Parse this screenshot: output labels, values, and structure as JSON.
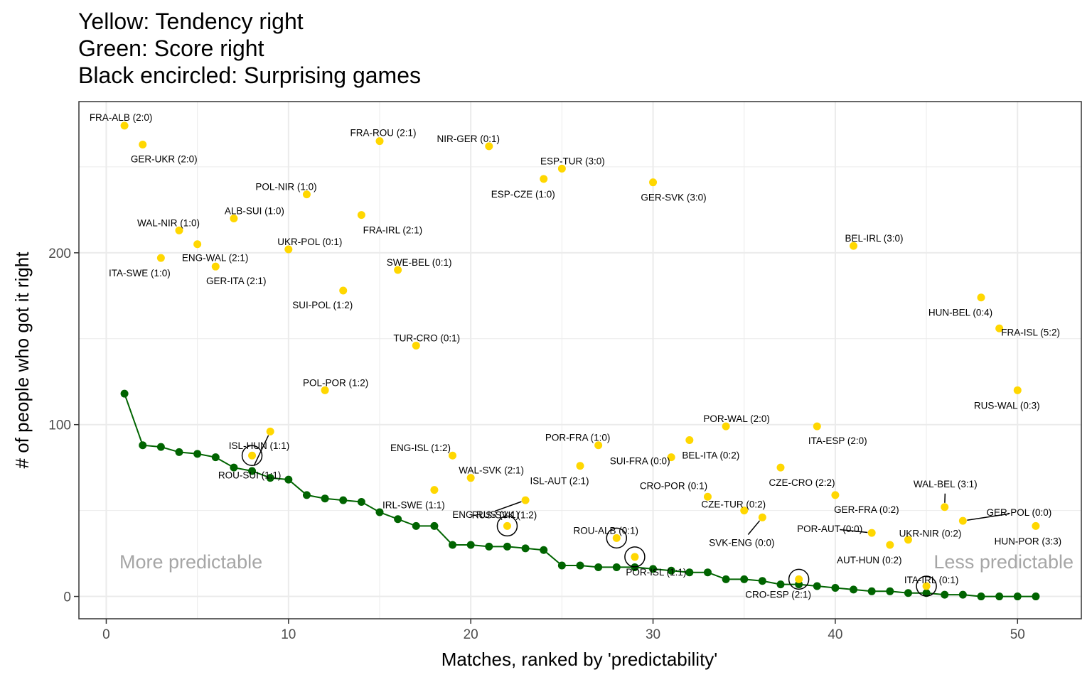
{
  "chart_data": {
    "type": "scatter",
    "title": [
      "Yellow: Tendency right",
      "Green: Score right",
      "Black encircled: Surprising games"
    ],
    "xlabel": "Matches, ranked by 'predictability'",
    "ylabel": "# of people who got it right",
    "xlim": [
      -1.5,
      53.5
    ],
    "ylim": [
      -13,
      288
    ],
    "x_ticks": [
      0,
      10,
      20,
      30,
      40,
      50
    ],
    "y_ticks": [
      0,
      100,
      200
    ],
    "grid": true,
    "notes": {
      "left": "More predictable",
      "right": "Less predictable"
    },
    "colors": {
      "tendency": "#FFD700",
      "score": "#006400",
      "circle": "#000000",
      "grid": "#ebebeb"
    },
    "series": [
      {
        "name": "Yellow: Tendency right",
        "points": [
          {
            "x": 1,
            "y": 274,
            "label": "FRA-ALB (2:0)",
            "dx": -5,
            "dy": -12
          },
          {
            "x": 2,
            "y": 263,
            "label": "GER-UKR (2:0)",
            "dx": 30,
            "dy": 20
          },
          {
            "x": 3,
            "y": 197,
            "label": "ITA-SWE (1:0)",
            "dx": -30,
            "dy": 21
          },
          {
            "x": 4,
            "y": 213,
            "label": "WAL-NIR (1:0)",
            "dx": -15,
            "dy": -11
          },
          {
            "x": 5,
            "y": 205,
            "label": "ENG-WAL (2:1)",
            "dx": 25,
            "dy": 19
          },
          {
            "x": 6,
            "y": 192,
            "label": "GER-ITA (2:1)",
            "dx": 29,
            "dy": 20
          },
          {
            "x": 7,
            "y": 220,
            "label": "ALB-SUI (1:0)",
            "dx": 29,
            "dy": -11
          },
          {
            "x": 8,
            "y": 82,
            "label": "ISL-HUN (1:1)",
            "dx": 10,
            "dy": -14
          },
          {
            "x": 9,
            "y": 96,
            "label": "ROU-SUI (1:1)",
            "dx": -29,
            "dy": 61
          },
          {
            "x": 10,
            "y": 202,
            "label": "UKR-POL (0:1)",
            "dx": 30,
            "dy": -11
          },
          {
            "x": 11,
            "y": 234,
            "label": "POL-NIR (1:0)",
            "dx": -29,
            "dy": -11
          },
          {
            "x": 12,
            "y": 120,
            "label": "POL-POR (1:2)",
            "dx": 15,
            "dy": -11
          },
          {
            "x": 13,
            "y": 178,
            "label": "SUI-POL (1:2)",
            "dx": -29,
            "dy": 20
          },
          {
            "x": 14,
            "y": 222,
            "label": "FRA-IRL (2:1)",
            "dx": 44,
            "dy": 21
          },
          {
            "x": 15,
            "y": 265,
            "label": "FRA-ROU (2:1)",
            "dx": 5,
            "dy": -12
          },
          {
            "x": 16,
            "y": 190,
            "label": "SWE-BEL (0:1)",
            "dx": 30,
            "dy": -11
          },
          {
            "x": 17,
            "y": 146,
            "label": "TUR-CRO (0:1)",
            "dx": 15,
            "dy": -11
          },
          {
            "x": 18,
            "y": 62,
            "label": "IRL-SWE (1:1)",
            "dx": -29,
            "dy": 21
          },
          {
            "x": 19,
            "y": 82,
            "label": "ENG-ISL (1:2)",
            "dx": -45,
            "dy": -11
          },
          {
            "x": 20,
            "y": 69,
            "label": "WAL-SVK (2:1)",
            "dx": 29,
            "dy": -11
          },
          {
            "x": 21,
            "y": 262,
            "label": "NIR-GER (0:1)",
            "dx": -29,
            "dy": -11
          },
          {
            "x": 22,
            "y": 41,
            "label": "RUS-SVK (1:2)",
            "dx": -4,
            "dy": -16
          },
          {
            "x": 23,
            "y": 56,
            "label": "ENG-RUS (1:1)",
            "dx": -56,
            "dy": 20
          },
          {
            "x": 24,
            "y": 243,
            "label": "ESP-CZE (1:0)",
            "dx": -29,
            "dy": 21
          },
          {
            "x": 25,
            "y": 249,
            "label": "ESP-TUR (3:0)",
            "dx": 15,
            "dy": -11
          },
          {
            "x": 26,
            "y": 76,
            "label": "ISL-AUT (2:1)",
            "dx": -29,
            "dy": 21
          },
          {
            "x": 27,
            "y": 88,
            "label": "POR-FRA (1:0)",
            "dx": -29,
            "dy": -11
          },
          {
            "x": 28,
            "y": 34,
            "label": "ROU-ALB (0:1)",
            "dx": -15,
            "dy": -11
          },
          {
            "x": 29,
            "y": 23,
            "label": "POR-ISL (1:1)",
            "dx": 30,
            "dy": 21
          },
          {
            "x": 30,
            "y": 241,
            "label": "GER-SVK (3:0)",
            "dx": 29,
            "dy": 21
          },
          {
            "x": 31,
            "y": 81,
            "label": "SUI-FRA (0:0)",
            "dx": -44,
            "dy": 5
          },
          {
            "x": 32,
            "y": 91,
            "label": "BEL-ITA (0:2)",
            "dx": 30,
            "dy": 21
          },
          {
            "x": 33,
            "y": 58,
            "label": "CRO-POR (0:1)",
            "dx": -48,
            "dy": -16
          },
          {
            "x": 34,
            "y": 99,
            "label": "POR-WAL (2:0)",
            "dx": 15,
            "dy": -11
          },
          {
            "x": 35,
            "y": 50,
            "label": "CZE-TUR (0:2)",
            "dx": -15,
            "dy": -9
          },
          {
            "x": 36,
            "y": 46,
            "label": "SVK-ENG (0:0)",
            "dx": -29,
            "dy": 35
          },
          {
            "x": 37,
            "y": 75,
            "label": "CZE-CRO (2:2)",
            "dx": 30,
            "dy": 21
          },
          {
            "x": 38,
            "y": 10,
            "label": "CRO-ESP (2:1)",
            "dx": -29,
            "dy": 21
          },
          {
            "x": 39,
            "y": 99,
            "label": "ITA-ESP (2:0)",
            "dx": 29,
            "dy": 20
          },
          {
            "x": 40,
            "y": 59,
            "label": "GER-FRA (0:2)",
            "dx": 44,
            "dy": 20
          },
          {
            "x": 41,
            "y": 204,
            "label": "BEL-IRL (3:0)",
            "dx": 29,
            "dy": -11
          },
          {
            "x": 42,
            "y": 37,
            "label": "POR-AUT (0:0)",
            "dx": -59,
            "dy": -6
          },
          {
            "x": 43,
            "y": 30,
            "label": "AUT-HUN (0:2)",
            "dx": -29,
            "dy": 21
          },
          {
            "x": 44,
            "y": 33,
            "label": "UKR-NIR (0:2)",
            "dx": 31,
            "dy": -9
          },
          {
            "x": 45,
            "y": 6,
            "label": "ITA-IRL (0:1)",
            "dx": 7,
            "dy": -9
          },
          {
            "x": 46,
            "y": 52,
            "label": "WAL-BEL (3:1)",
            "dx": 1,
            "dy": -33
          },
          {
            "x": 47,
            "y": 44,
            "label": "GER-POL (0:0)",
            "dx": 79,
            "dy": -12
          },
          {
            "x": 48,
            "y": 174,
            "label": "HUN-BEL (0:4)",
            "dx": -29,
            "dy": 21
          },
          {
            "x": 49,
            "y": 156,
            "label": "FRA-ISL (5:2)",
            "dx": 44,
            "dy": 5
          },
          {
            "x": 50,
            "y": 120,
            "label": "RUS-WAL (0:3)",
            "dx": -15,
            "dy": 21
          },
          {
            "x": 51,
            "y": 41,
            "label": "HUN-POR (3:3)",
            "dx": -11,
            "dy": 21
          }
        ]
      },
      {
        "name": "Green: Score right",
        "points": [
          {
            "x": 1,
            "y": 118
          },
          {
            "x": 2,
            "y": 88
          },
          {
            "x": 3,
            "y": 87
          },
          {
            "x": 4,
            "y": 84
          },
          {
            "x": 5,
            "y": 83
          },
          {
            "x": 6,
            "y": 81
          },
          {
            "x": 7,
            "y": 75
          },
          {
            "x": 8,
            "y": 73
          },
          {
            "x": 9,
            "y": 69
          },
          {
            "x": 10,
            "y": 68
          },
          {
            "x": 11,
            "y": 59
          },
          {
            "x": 12,
            "y": 57
          },
          {
            "x": 13,
            "y": 56
          },
          {
            "x": 14,
            "y": 55
          },
          {
            "x": 15,
            "y": 49
          },
          {
            "x": 16,
            "y": 45
          },
          {
            "x": 17,
            "y": 41
          },
          {
            "x": 18,
            "y": 41
          },
          {
            "x": 19,
            "y": 30
          },
          {
            "x": 20,
            "y": 30
          },
          {
            "x": 21,
            "y": 29
          },
          {
            "x": 22,
            "y": 29
          },
          {
            "x": 23,
            "y": 28
          },
          {
            "x": 24,
            "y": 27
          },
          {
            "x": 25,
            "y": 18
          },
          {
            "x": 26,
            "y": 18
          },
          {
            "x": 27,
            "y": 17
          },
          {
            "x": 28,
            "y": 17
          },
          {
            "x": 29,
            "y": 17
          },
          {
            "x": 30,
            "y": 16
          },
          {
            "x": 31,
            "y": 15
          },
          {
            "x": 32,
            "y": 14
          },
          {
            "x": 33,
            "y": 14
          },
          {
            "x": 34,
            "y": 10
          },
          {
            "x": 35,
            "y": 10
          },
          {
            "x": 36,
            "y": 9
          },
          {
            "x": 37,
            "y": 7
          },
          {
            "x": 38,
            "y": 7
          },
          {
            "x": 39,
            "y": 6
          },
          {
            "x": 40,
            "y": 5
          },
          {
            "x": 41,
            "y": 4
          },
          {
            "x": 42,
            "y": 3
          },
          {
            "x": 43,
            "y": 3
          },
          {
            "x": 44,
            "y": 2
          },
          {
            "x": 45,
            "y": 2
          },
          {
            "x": 46,
            "y": 1
          },
          {
            "x": 47,
            "y": 1
          },
          {
            "x": 48,
            "y": 0
          },
          {
            "x": 49,
            "y": 0
          },
          {
            "x": 50,
            "y": 0
          },
          {
            "x": 51,
            "y": 0
          }
        ]
      },
      {
        "name": "Black encircled: Surprising games",
        "points": [
          {
            "x": 8,
            "y": 82
          },
          {
            "x": 22,
            "y": 41
          },
          {
            "x": 28,
            "y": 34
          },
          {
            "x": 29,
            "y": 23
          },
          {
            "x": 38,
            "y": 10
          },
          {
            "x": 45,
            "y": 6
          }
        ]
      }
    ]
  }
}
